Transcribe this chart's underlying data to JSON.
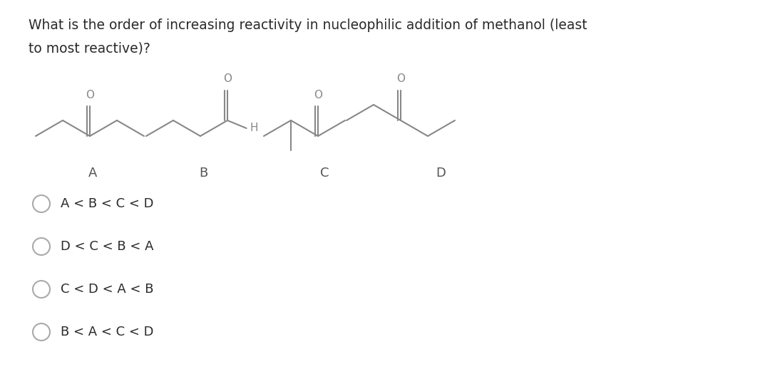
{
  "title_line1": "What is the order of increasing reactivity in nucleophilic addition of methanol (least",
  "title_line2": "to most reactive)?",
  "bg_color": "#ffffff",
  "text_color": "#2a2a2a",
  "label_color": "#555555",
  "question_fontsize": 13.5,
  "label_fontsize": 13,
  "option_fontsize": 13,
  "labels": [
    "A",
    "B",
    "C",
    "D"
  ],
  "options": [
    "A < B < C < D",
    "D < C < B < A",
    "C < D < A < B",
    "B < A < C < D"
  ]
}
